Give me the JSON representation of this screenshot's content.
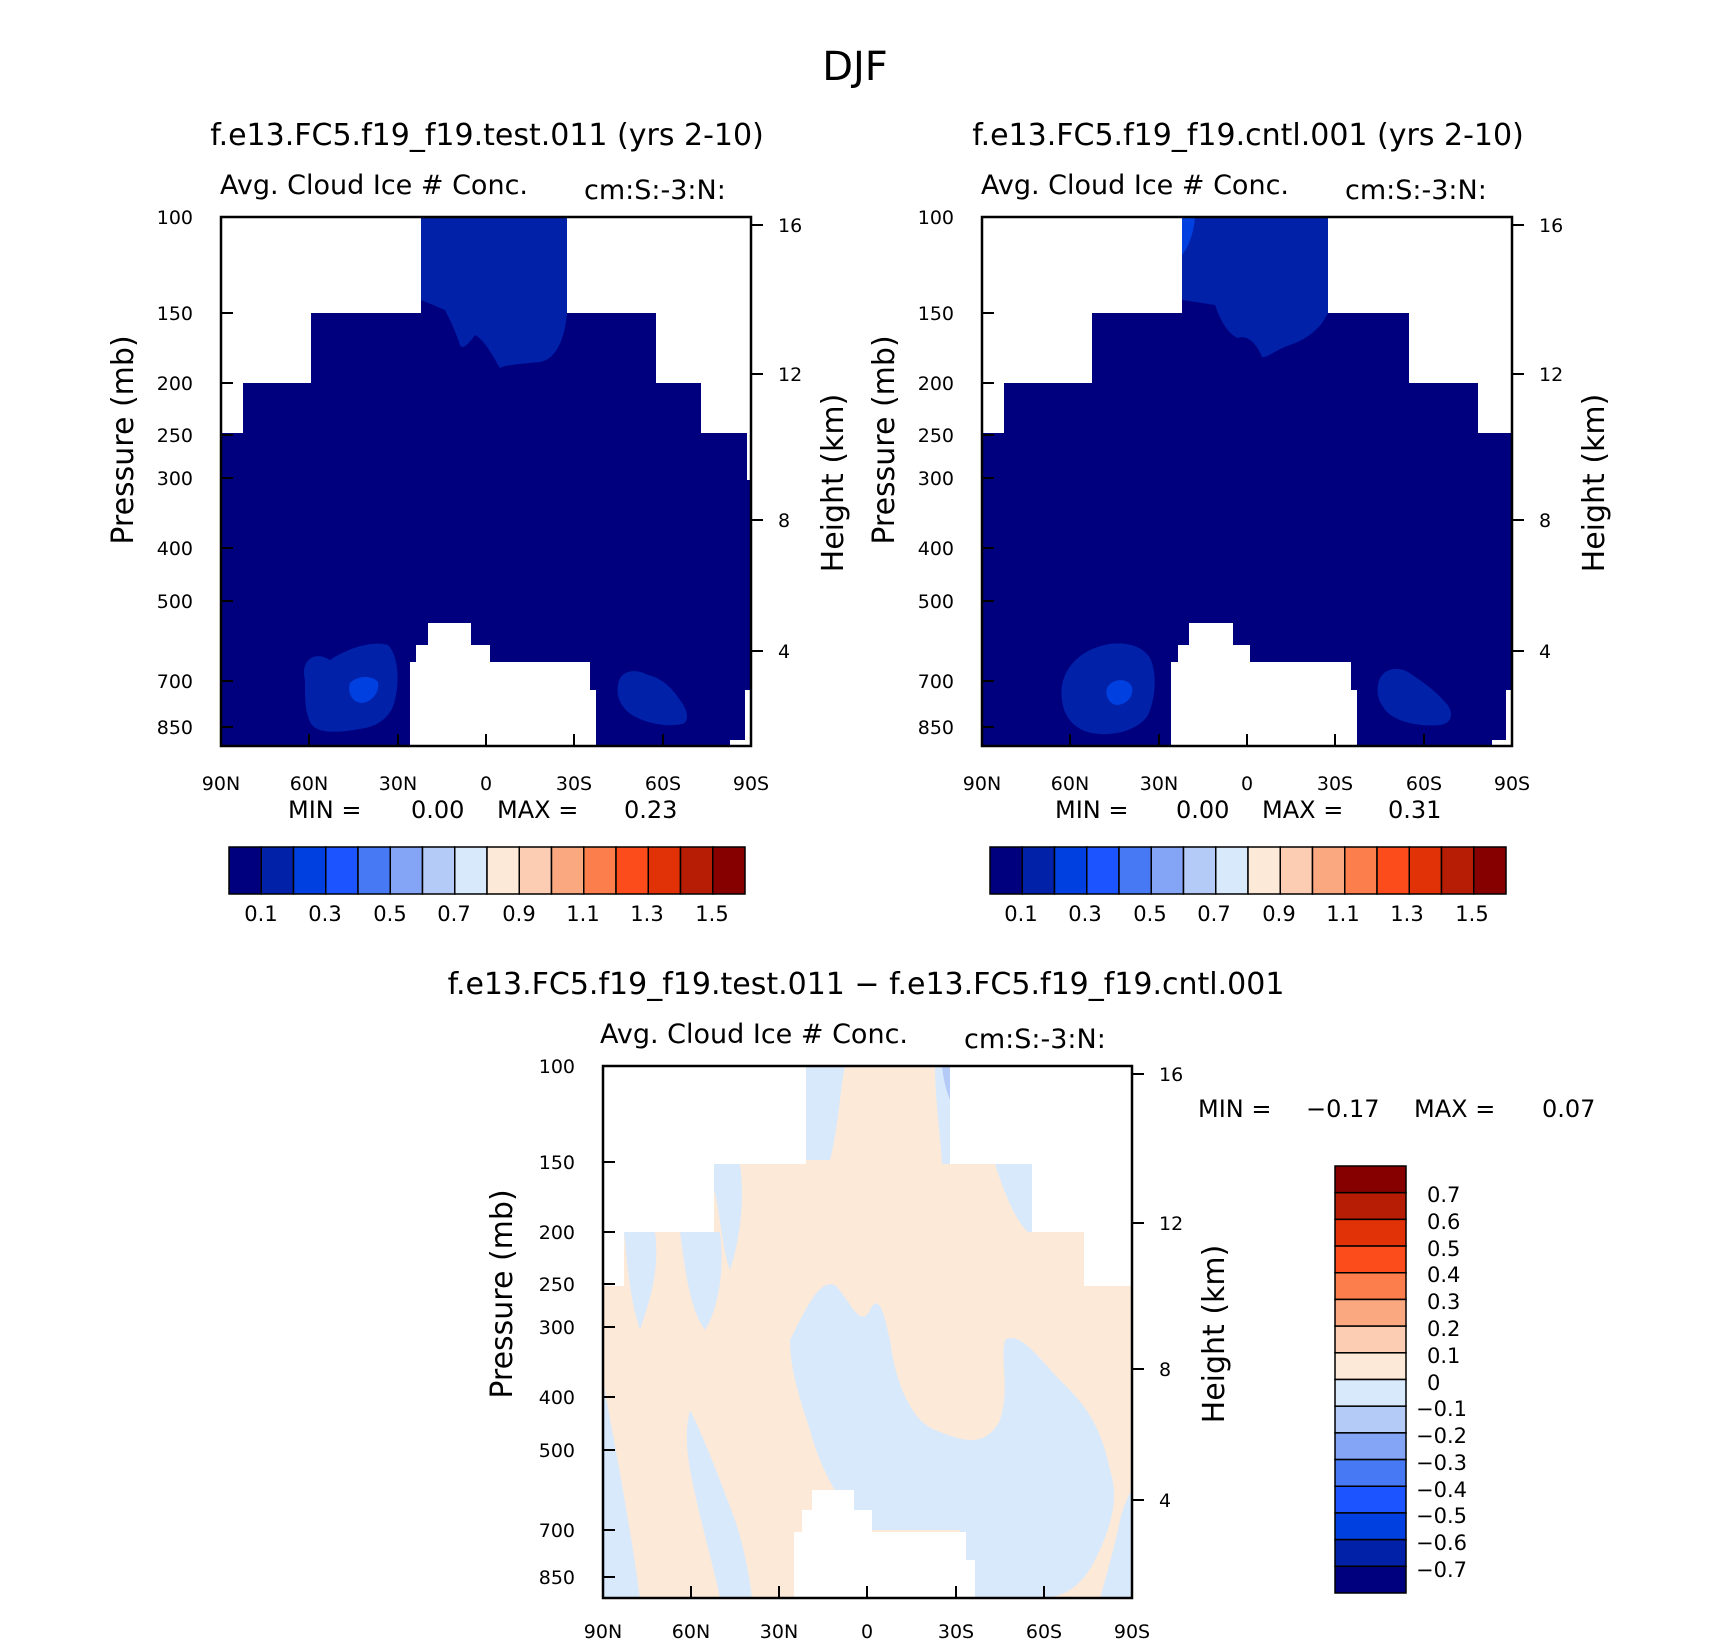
{
  "figure_title": "DJF",
  "colors": {
    "abs_scale": [
      "#00007f",
      "#0021a8",
      "#0040e0",
      "#1c55ff",
      "#4779f4",
      "#84a4f6",
      "#b5cbf7",
      "#d8e9fb",
      "#fde9d8",
      "#fccdb2",
      "#faa880",
      "#fb7e4c",
      "#fc4c1b",
      "#e03107",
      "#b71c05",
      "#870000"
    ],
    "diff_scale": [
      "#00007f",
      "#0021a8",
      "#0040e0",
      "#1c55ff",
      "#4779f4",
      "#84a4f6",
      "#b5cbf7",
      "#d8e9fb",
      "#fde9d8",
      "#fccdb2",
      "#faa880",
      "#fb7e4c",
      "#fc4c1b",
      "#e03107",
      "#b71c05",
      "#870000"
    ]
  },
  "panels": [
    {
      "title": "f.e13.FC5.f19_f19.test.011 (yrs 2-10)",
      "subtitle_left": "Avg. Cloud Ice # Conc.",
      "subtitle_right": "cm:S:-3:N:",
      "ylabel": "Pressure (mb)",
      "ylabel_right": "Height (km)",
      "min_label": "MIN =",
      "min_value": "0.00",
      "max_label": "MAX =",
      "max_value": "0.23"
    },
    {
      "title": "f.e13.FC5.f19_f19.cntl.001 (yrs 2-10)",
      "subtitle_left": "Avg. Cloud Ice # Conc.",
      "subtitle_right": "cm:S:-3:N:",
      "ylabel": "Pressure (mb)",
      "ylabel_right": "Height (km)",
      "min_label": "MIN =",
      "min_value": "0.00",
      "max_label": "MAX =",
      "max_value": "0.31"
    },
    {
      "title": "f.e13.FC5.f19_f19.test.011 - f.e13.FC5.f19_f19.cntl.001",
      "subtitle_left": "Avg. Cloud Ice # Conc.",
      "subtitle_right": "cm:S:-3:N:",
      "ylabel": "Pressure (mb)",
      "ylabel_right": "Height (km)",
      "min_label": "MIN =",
      "min_value": "-0.17",
      "max_label": "MAX =",
      "max_value": "0.07"
    }
  ],
  "chart_data": [
    {
      "type": "heatmap",
      "title": "f.e13.FC5.f19_f19.test.011 (yrs 2-10)",
      "x_ticks": [
        "90N",
        "60N",
        "30N",
        "0",
        "30S",
        "60S",
        "90S"
      ],
      "y_ticks": [
        "100",
        "150",
        "200",
        "250",
        "300",
        "400",
        "500",
        "700",
        "850"
      ],
      "y_right_ticks": [
        "16",
        "12",
        "8",
        "4"
      ],
      "y_scale": "log",
      "colorbar_labels": [
        "0.1",
        "0.3",
        "0.5",
        "0.7",
        "0.9",
        "1.1",
        "1.3",
        "1.5"
      ],
      "min": 0.0,
      "max": 0.23
    },
    {
      "type": "heatmap",
      "title": "f.e13.FC5.f19_f19.cntl.001 (yrs 2-10)",
      "x_ticks": [
        "90N",
        "60N",
        "30N",
        "0",
        "30S",
        "60S",
        "90S"
      ],
      "y_ticks": [
        "100",
        "150",
        "200",
        "250",
        "300",
        "400",
        "500",
        "700",
        "850"
      ],
      "y_right_ticks": [
        "16",
        "12",
        "8",
        "4"
      ],
      "y_scale": "log",
      "colorbar_labels": [
        "0.1",
        "0.3",
        "0.5",
        "0.7",
        "0.9",
        "1.1",
        "1.3",
        "1.5"
      ],
      "min": 0.0,
      "max": 0.31
    },
    {
      "type": "heatmap",
      "title": "f.e13.FC5.f19_f19.test.011 - f.e13.FC5.f19_f19.cntl.001",
      "x_ticks": [
        "90N",
        "60N",
        "30N",
        "0",
        "30S",
        "60S",
        "90S"
      ],
      "y_ticks": [
        "100",
        "150",
        "200",
        "250",
        "300",
        "400",
        "500",
        "700",
        "850"
      ],
      "y_right_ticks": [
        "16",
        "12",
        "8",
        "4"
      ],
      "y_scale": "log",
      "colorbar_labels": [
        "0.7",
        "0.6",
        "0.5",
        "0.4",
        "0.3",
        "0.2",
        "0.1",
        "0",
        "-0.1",
        "-0.2",
        "-0.3",
        "-0.4",
        "-0.5",
        "-0.6",
        "-0.7"
      ],
      "min": -0.17,
      "max": 0.07
    }
  ]
}
